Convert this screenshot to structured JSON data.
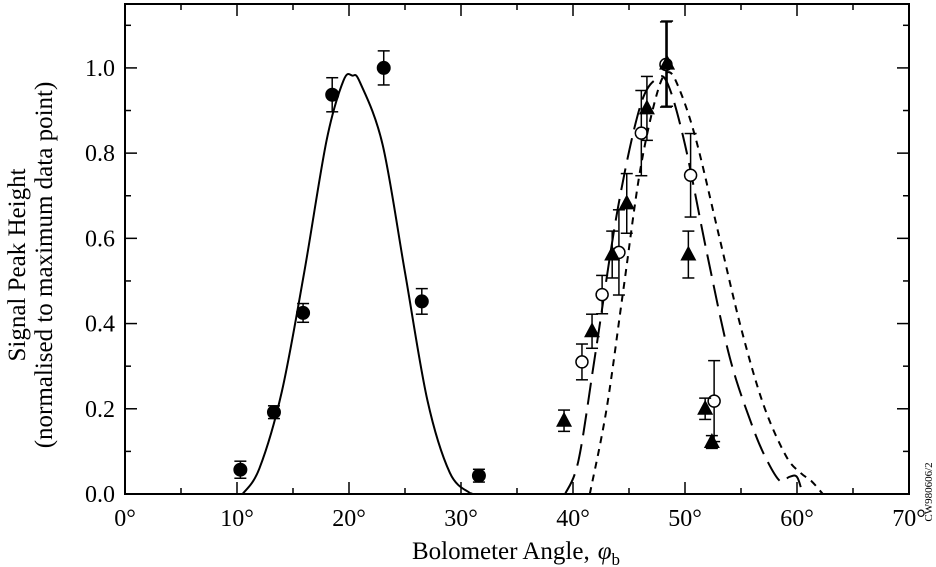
{
  "chart_data": {
    "type": "scatter",
    "xlabel": "Bolometer Angle,",
    "xlabel_symbol": "φ",
    "xlabel_subscript": "b",
    "ylabel_line1": "Signal Peak Height",
    "ylabel_line2": "(normalised to maximum data point)",
    "side_code": "CW980606/2",
    "xlim": [
      0,
      70
    ],
    "ylim": [
      0,
      1.15
    ],
    "x_ticks": [
      {
        "value": 0,
        "label": "0°"
      },
      {
        "value": 10,
        "label": "10°"
      },
      {
        "value": 20,
        "label": "20°"
      },
      {
        "value": 30,
        "label": "30°"
      },
      {
        "value": 40,
        "label": "40°"
      },
      {
        "value": 50,
        "label": "50°"
      },
      {
        "value": 60,
        "label": "60°"
      },
      {
        "value": 70,
        "label": "70°"
      }
    ],
    "y_ticks": [
      {
        "value": 0,
        "label": "0.0"
      },
      {
        "value": 0.2,
        "label": "0.2"
      },
      {
        "value": 0.4,
        "label": "0.4"
      },
      {
        "value": 0.6,
        "label": "0.6"
      },
      {
        "value": 0.8,
        "label": "0.8"
      },
      {
        "value": 1.0,
        "label": "1.0"
      }
    ],
    "grid": false,
    "series": [
      {
        "marker": "filled-circle",
        "points": [
          {
            "x": 10.3,
            "y": 0.057,
            "err": 0.02
          },
          {
            "x": 13.3,
            "y": 0.192,
            "err": 0.015
          },
          {
            "x": 15.9,
            "y": 0.425,
            "err": 0.022
          },
          {
            "x": 18.5,
            "y": 0.937,
            "err": 0.04
          },
          {
            "x": 23.1,
            "y": 1.0,
            "err": 0.04
          },
          {
            "x": 26.5,
            "y": 0.452,
            "err": 0.03
          },
          {
            "x": 31.6,
            "y": 0.043,
            "err": 0.015
          }
        ]
      },
      {
        "marker": "open-circle",
        "points": [
          {
            "x": 40.8,
            "y": 0.31,
            "err": 0.042
          },
          {
            "x": 42.6,
            "y": 0.468,
            "err": 0.045
          },
          {
            "x": 44.1,
            "y": 0.567,
            "err": 0.1
          },
          {
            "x": 46.1,
            "y": 0.847,
            "err": 0.1
          },
          {
            "x": 48.3,
            "y": 1.008,
            "err": 0.1
          },
          {
            "x": 50.5,
            "y": 0.748,
            "err": 0.098
          },
          {
            "x": 52.6,
            "y": 0.218,
            "err": 0.095
          }
        ]
      },
      {
        "marker": "filled-triangle",
        "points": [
          {
            "x": 39.2,
            "y": 0.172,
            "err": 0.025
          },
          {
            "x": 41.7,
            "y": 0.382,
            "err": 0.04
          },
          {
            "x": 43.5,
            "y": 0.562,
            "err": 0.055
          },
          {
            "x": 44.8,
            "y": 0.682,
            "err": 0.07
          },
          {
            "x": 46.6,
            "y": 0.905,
            "err": 0.075
          },
          {
            "x": 48.4,
            "y": 1.01,
            "err": 0.1
          },
          {
            "x": 50.3,
            "y": 0.562,
            "err": 0.055
          },
          {
            "x": 51.8,
            "y": 0.2,
            "err": 0.025
          },
          {
            "x": 52.4,
            "y": 0.122,
            "err": 0.015
          }
        ]
      }
    ],
    "curves": [
      {
        "style": "solid",
        "points": [
          [
            10.5,
            0
          ],
          [
            12,
            0.06
          ],
          [
            14,
            0.24
          ],
          [
            16,
            0.52
          ],
          [
            18,
            0.83
          ],
          [
            19.5,
            0.97
          ],
          [
            20.3,
            0.982
          ],
          [
            21,
            0.965
          ],
          [
            23,
            0.82
          ],
          [
            25,
            0.52
          ],
          [
            27,
            0.22
          ],
          [
            29,
            0.05
          ],
          [
            30.8,
            0.002
          ],
          [
            31,
            0
          ]
        ]
      },
      {
        "style": "long-dash",
        "points": [
          [
            39.3,
            0
          ],
          [
            40.5,
            0.08
          ],
          [
            42,
            0.33
          ],
          [
            44,
            0.67
          ],
          [
            46,
            0.91
          ],
          [
            47.5,
            0.975
          ],
          [
            48.5,
            0.96
          ],
          [
            50,
            0.82
          ],
          [
            52,
            0.56
          ],
          [
            54,
            0.32
          ],
          [
            56,
            0.16
          ],
          [
            57.3,
            0.08
          ],
          [
            58.5,
            0.03
          ],
          [
            59.3,
            0.04
          ],
          [
            60,
            0.04
          ],
          [
            60.5,
            0
          ]
        ]
      },
      {
        "style": "short-dash",
        "points": [
          [
            41.5,
            0
          ],
          [
            43,
            0.2
          ],
          [
            44.5,
            0.48
          ],
          [
            46,
            0.76
          ],
          [
            47.5,
            0.94
          ],
          [
            48.5,
            0.99
          ],
          [
            49.5,
            0.95
          ],
          [
            51,
            0.83
          ],
          [
            53,
            0.61
          ],
          [
            55,
            0.39
          ],
          [
            57,
            0.21
          ],
          [
            59,
            0.09
          ],
          [
            60.3,
            0.05
          ],
          [
            61.3,
            0.03
          ],
          [
            62.3,
            0
          ]
        ]
      }
    ]
  }
}
